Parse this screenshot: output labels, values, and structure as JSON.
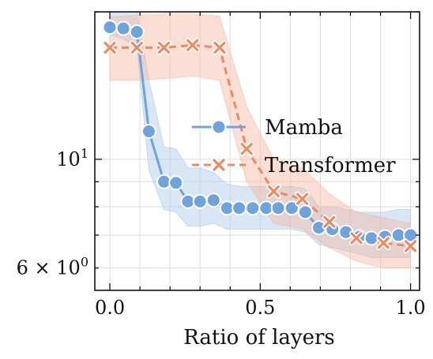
{
  "chart_data": {
    "type": "line",
    "xlabel": "Ratio of layers",
    "ylabel": "",
    "title": "",
    "xlim": [
      -0.05,
      1.03
    ],
    "ylim": [
      5.4,
      20.0
    ],
    "y_scale": "log",
    "grid": true,
    "legend_position": "center-right",
    "x_ticks": [
      {
        "value": 0.0,
        "label": "0.0"
      },
      {
        "value": 0.5,
        "label": "0.5"
      },
      {
        "value": 1.0,
        "label": "1.0"
      }
    ],
    "y_ticks": [
      {
        "value": 10,
        "label": "10",
        "sup": "1"
      },
      {
        "value": 6,
        "label": "6 × 10",
        "sup": "0"
      }
    ],
    "series": [
      {
        "name": "Mamba",
        "color": "#6fa3db",
        "band_color": "#a9c8ea",
        "marker": "circle",
        "linestyle": "solid",
        "points": [
          {
            "x": 0.0,
            "y": 18.6,
            "lo": 18.0,
            "hi": 20.0
          },
          {
            "x": 0.045,
            "y": 18.5,
            "lo": 17.6,
            "hi": 20.0
          },
          {
            "x": 0.09,
            "y": 18.2,
            "lo": 17.0,
            "hi": 20.0
          },
          {
            "x": 0.13,
            "y": 11.4,
            "lo": 9.5,
            "hi": 14.5
          },
          {
            "x": 0.18,
            "y": 9.0,
            "lo": 7.9,
            "hi": 10.6
          },
          {
            "x": 0.22,
            "y": 8.95,
            "lo": 7.8,
            "hi": 10.5
          },
          {
            "x": 0.26,
            "y": 8.2,
            "lo": 7.3,
            "hi": 9.6
          },
          {
            "x": 0.3,
            "y": 8.2,
            "lo": 7.3,
            "hi": 9.6
          },
          {
            "x": 0.345,
            "y": 8.25,
            "lo": 7.4,
            "hi": 9.4
          },
          {
            "x": 0.39,
            "y": 7.95,
            "lo": 7.2,
            "hi": 8.9
          },
          {
            "x": 0.43,
            "y": 7.95,
            "lo": 7.2,
            "hi": 8.8
          },
          {
            "x": 0.475,
            "y": 7.95,
            "lo": 7.2,
            "hi": 8.8
          },
          {
            "x": 0.52,
            "y": 7.95,
            "lo": 7.2,
            "hi": 8.8
          },
          {
            "x": 0.56,
            "y": 7.95,
            "lo": 7.2,
            "hi": 8.8
          },
          {
            "x": 0.605,
            "y": 7.95,
            "lo": 7.2,
            "hi": 8.8
          },
          {
            "x": 0.65,
            "y": 7.8,
            "lo": 7.1,
            "hi": 8.7
          },
          {
            "x": 0.695,
            "y": 7.25,
            "lo": 6.7,
            "hi": 8.0
          },
          {
            "x": 0.74,
            "y": 7.2,
            "lo": 6.6,
            "hi": 8.0
          },
          {
            "x": 0.785,
            "y": 7.1,
            "lo": 6.5,
            "hi": 7.9
          },
          {
            "x": 0.83,
            "y": 6.95,
            "lo": 6.4,
            "hi": 7.8
          },
          {
            "x": 0.87,
            "y": 6.9,
            "lo": 6.3,
            "hi": 7.8
          },
          {
            "x": 0.915,
            "y": 6.95,
            "lo": 6.3,
            "hi": 7.8
          },
          {
            "x": 0.96,
            "y": 7.0,
            "lo": 6.3,
            "hi": 7.9
          },
          {
            "x": 1.0,
            "y": 7.0,
            "lo": 6.3,
            "hi": 7.9
          }
        ]
      },
      {
        "name": "Transformer",
        "color": "#ee8a62",
        "band_color": "#f6b8a0",
        "marker": "x",
        "linestyle": "dashed",
        "points": [
          {
            "x": 0.0,
            "y": 16.9,
            "lo": 14.5,
            "hi": 19.5
          },
          {
            "x": 0.09,
            "y": 16.9,
            "lo": 14.5,
            "hi": 19.7
          },
          {
            "x": 0.18,
            "y": 16.9,
            "lo": 14.6,
            "hi": 19.8
          },
          {
            "x": 0.275,
            "y": 17.1,
            "lo": 14.8,
            "hi": 19.8
          },
          {
            "x": 0.365,
            "y": 16.9,
            "lo": 14.5,
            "hi": 19.6
          },
          {
            "x": 0.455,
            "y": 10.5,
            "lo": 9.0,
            "hi": 12.8
          },
          {
            "x": 0.545,
            "y": 8.6,
            "lo": 7.4,
            "hi": 10.0
          },
          {
            "x": 0.64,
            "y": 8.3,
            "lo": 7.2,
            "hi": 9.6
          },
          {
            "x": 0.73,
            "y": 7.45,
            "lo": 6.6,
            "hi": 8.5
          },
          {
            "x": 0.82,
            "y": 6.9,
            "lo": 6.2,
            "hi": 7.8
          },
          {
            "x": 0.91,
            "y": 6.75,
            "lo": 6.0,
            "hi": 7.6
          },
          {
            "x": 1.0,
            "y": 6.65,
            "lo": 6.0,
            "hi": 7.4
          }
        ]
      }
    ]
  }
}
